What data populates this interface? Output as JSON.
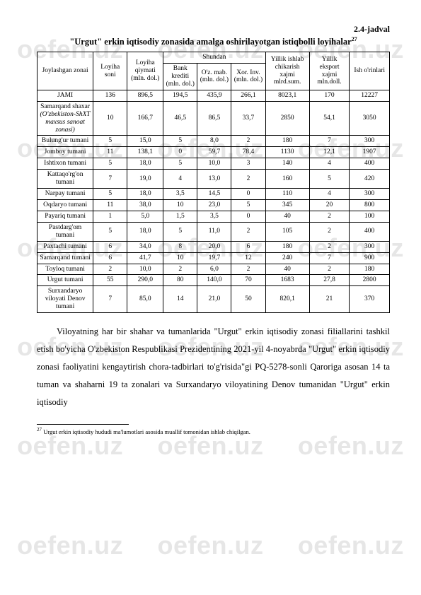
{
  "watermark_text": "oefen.uz",
  "caption": "2.4-jadval",
  "title_prefix": "\"Urgut\" erkin iqtisodiy zonasida amalga oshirilayotgan istiqbolli loyihalar",
  "title_sup": "27",
  "table": {
    "head": {
      "zone": "Joylashgan zonai",
      "count": "Loyiha soni",
      "value": "Loyiha qiymati (mln. dol.)",
      "shundan": "Shundan",
      "bank": "Bank krediti (mln. dol.)",
      "oz": "O'z. mab. (mln. dol.)",
      "xor": "Xor. Inv. (mln. dol.)",
      "ylk_ish": "Yillik ishlab chikarish xajmi mlrd.sum.",
      "ylk_eks": "Yillik eksport xajmi mln.doll.",
      "ish": "Ish o'rinlari"
    },
    "rows": [
      {
        "name": "JAMI",
        "count": "136",
        "val": "896,5",
        "bank": "194,5",
        "oz": "435,9",
        "xor": "266,1",
        "ish_chk": "8023,1",
        "eks": "170",
        "orin": "12227"
      },
      {
        "name": "Samarqand shaxar",
        "italic_extra": "(O'zbekiston-ShXT maxsus sanoat zonasi)",
        "count": "10",
        "val": "166,7",
        "bank": "46,5",
        "oz": "86,5",
        "xor": "33,7",
        "ish_chk": "2850",
        "eks": "54,1",
        "orin": "3050"
      },
      {
        "name": "Bulung'ur tumani",
        "count": "5",
        "val": "15,0",
        "bank": "5",
        "oz": "8,0",
        "xor": "2",
        "ish_chk": "180",
        "eks": "7",
        "orin": "300"
      },
      {
        "name": "Jomboy tumani",
        "count": "11",
        "val": "138,1",
        "bank": "0",
        "oz": "59,7",
        "xor": "78,4",
        "ish_chk": "1130",
        "eks": "12,1",
        "orin": "1907"
      },
      {
        "name": "Ishtixon tumani",
        "count": "5",
        "val": "18,0",
        "bank": "5",
        "oz": "10,0",
        "xor": "3",
        "ish_chk": "140",
        "eks": "4",
        "orin": "400"
      },
      {
        "name": "Kattaqo'rg'on tumani",
        "count": "7",
        "val": "19,0",
        "bank": "4",
        "oz": "13,0",
        "xor": "2",
        "ish_chk": "160",
        "eks": "5",
        "orin": "420"
      },
      {
        "name": "Narpay tumani",
        "count": "5",
        "val": "18,0",
        "bank": "3,5",
        "oz": "14,5",
        "xor": "0",
        "ish_chk": "110",
        "eks": "4",
        "orin": "300"
      },
      {
        "name": "Oqdaryo tumani",
        "count": "11",
        "val": "38,0",
        "bank": "10",
        "oz": "23,0",
        "xor": "5",
        "ish_chk": "345",
        "eks": "20",
        "orin": "800"
      },
      {
        "name": "Payariq tumani",
        "count": "1",
        "val": "5,0",
        "bank": "1,5",
        "oz": "3,5",
        "xor": "0",
        "ish_chk": "40",
        "eks": "2",
        "orin": "100"
      },
      {
        "name": "Pastdarg'om tumani",
        "count": "5",
        "val": "18,0",
        "bank": "5",
        "oz": "11,0",
        "xor": "2",
        "ish_chk": "105",
        "eks": "2",
        "orin": "400"
      },
      {
        "name": "Paxtachi tumani",
        "count": "6",
        "val": "34,0",
        "bank": "8",
        "oz": "20,0",
        "xor": "6",
        "ish_chk": "180",
        "eks": "2",
        "orin": "300"
      },
      {
        "name": "Samarqand tumani",
        "count": "6",
        "val": "41,7",
        "bank": "10",
        "oz": "19,7",
        "xor": "12",
        "ish_chk": "240",
        "eks": "7",
        "orin": "900"
      },
      {
        "name": "Toyloq tumani",
        "count": "2",
        "val": "10,0",
        "bank": "2",
        "oz": "6,0",
        "xor": "2",
        "ish_chk": "40",
        "eks": "2",
        "orin": "180"
      },
      {
        "name": "Urgut tumani",
        "count": "55",
        "val": "290,0",
        "bank": "80",
        "oz": "140,0",
        "xor": "70",
        "ish_chk": "1683",
        "eks": "27,8",
        "orin": "2800"
      },
      {
        "name": "Surxandaryo viloyati Denov tumani",
        "count": "7",
        "val": "85,0",
        "bank": "14",
        "oz": "21,0",
        "xor": "50",
        "ish_chk": "820,1",
        "eks": "21",
        "orin": "370"
      }
    ]
  },
  "paragraph": "Viloyatning har bir shahar va tumanlarida \"Urgut\" erkin iqtisodiy zonasi filiallarini tashkil etish bo'yicha O'zbekiston Respublikasi Prezidentining 2021-yil 4-noyabrda \"Urgut\" erkin iqtisodiy zonasi faoliyatini kengaytirish chora-tadbirlari to'g'risida\"gi PQ-5278-sonli Qaroriga asosan 14 ta tuman va shaharni 19 ta zonalari va Surxandaryo viloyatining Denov tumanidan \"Urgut\" erkin iqtisodiy",
  "footnote_sup": "27",
  "footnote": " Urgut erkin iqtisodiy hududi ma'lumotlari asosida muallif tomonidan ishlab chiqilgan."
}
